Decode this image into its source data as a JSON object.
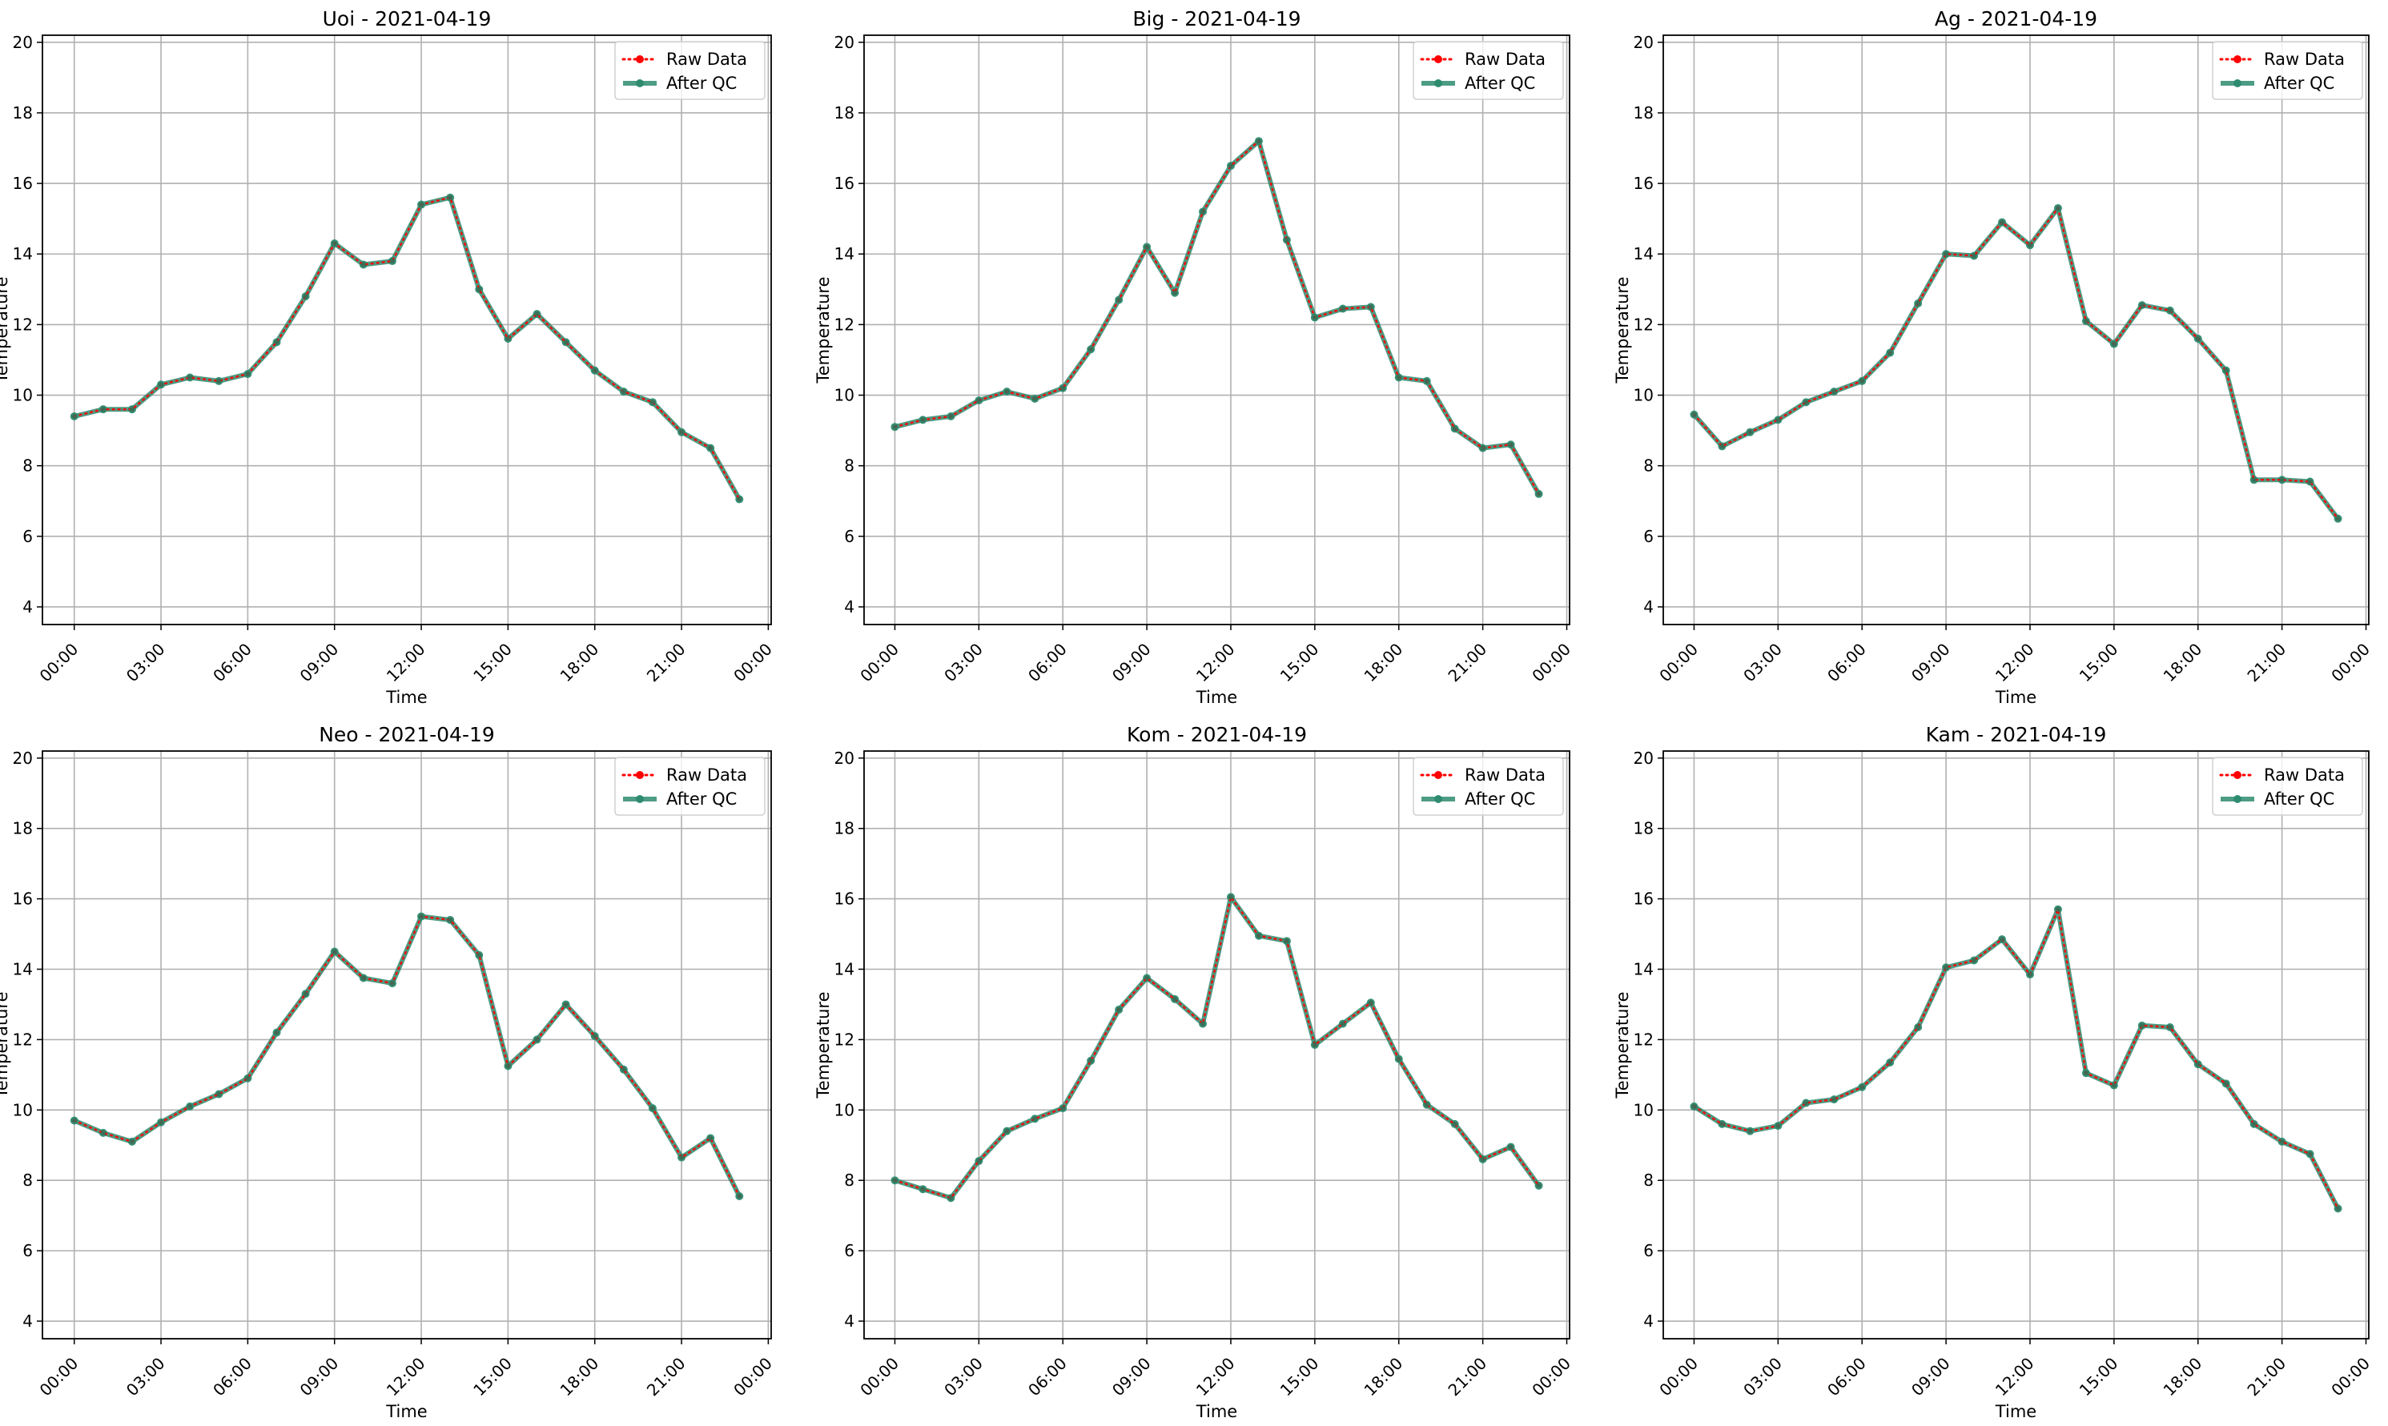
{
  "figure": {
    "x_ticks": [
      "00:00",
      "03:00",
      "06:00",
      "09:00",
      "12:00",
      "15:00",
      "18:00",
      "21:00",
      "00:00"
    ],
    "y_ticks": [
      "4",
      "6",
      "8",
      "10",
      "12",
      "14",
      "16",
      "18",
      "20"
    ],
    "legend": {
      "raw": "Raw Data",
      "qc": "After QC"
    },
    "colors": {
      "raw": "#ff0000",
      "qc": "#2e8b6f",
      "grid": "#b0b0b0"
    }
  },
  "chart_data": [
    {
      "type": "line",
      "title": "Uoi - 2021-04-19",
      "xlabel": "Time",
      "ylabel": "Temperature",
      "x": [
        "00:00",
        "01:00",
        "02:00",
        "03:00",
        "04:00",
        "05:00",
        "06:00",
        "07:00",
        "08:00",
        "09:00",
        "10:00",
        "11:00",
        "12:00",
        "13:00",
        "14:00",
        "15:00",
        "16:00",
        "17:00",
        "18:00",
        "19:00",
        "20:00",
        "21:00",
        "22:00",
        "23:00"
      ],
      "xlim": [
        "-01:06",
        "24:06"
      ],
      "ylim": [
        3.5,
        20.2
      ],
      "grid": true,
      "legend_position": "top-right",
      "series": [
        {
          "name": "Raw Data",
          "values": [
            9.4,
            9.6,
            9.6,
            10.3,
            10.5,
            10.4,
            10.6,
            11.5,
            12.8,
            14.3,
            13.7,
            13.8,
            15.4,
            15.6,
            13.0,
            11.6,
            12.3,
            11.5,
            10.7,
            10.1,
            9.8,
            8.95,
            8.5,
            7.05
          ]
        },
        {
          "name": "After QC",
          "values": [
            9.4,
            9.6,
            9.6,
            10.3,
            10.5,
            10.4,
            10.6,
            11.5,
            12.8,
            14.3,
            13.7,
            13.8,
            15.4,
            15.6,
            13.0,
            11.6,
            12.3,
            11.5,
            10.7,
            10.1,
            9.8,
            8.95,
            8.5,
            7.05
          ]
        }
      ]
    },
    {
      "type": "line",
      "title": "Big - 2021-04-19",
      "xlabel": "Time",
      "ylabel": "Temperature",
      "x": [
        "00:00",
        "01:00",
        "02:00",
        "03:00",
        "04:00",
        "05:00",
        "06:00",
        "07:00",
        "08:00",
        "09:00",
        "10:00",
        "11:00",
        "12:00",
        "13:00",
        "14:00",
        "15:00",
        "16:00",
        "17:00",
        "18:00",
        "19:00",
        "20:00",
        "21:00",
        "22:00",
        "23:00"
      ],
      "xlim": [
        "-01:06",
        "24:06"
      ],
      "ylim": [
        3.5,
        20.2
      ],
      "grid": true,
      "legend_position": "top-right",
      "series": [
        {
          "name": "Raw Data",
          "values": [
            9.1,
            9.3,
            9.4,
            9.85,
            10.1,
            9.9,
            10.2,
            11.3,
            12.7,
            14.2,
            12.9,
            15.2,
            16.5,
            17.2,
            14.4,
            12.2,
            12.45,
            12.5,
            10.5,
            10.4,
            9.05,
            8.5,
            8.6,
            7.2
          ]
        },
        {
          "name": "After QC",
          "values": [
            9.1,
            9.3,
            9.4,
            9.85,
            10.1,
            9.9,
            10.2,
            11.3,
            12.7,
            14.2,
            12.9,
            15.2,
            16.5,
            17.2,
            14.4,
            12.2,
            12.45,
            12.5,
            10.5,
            10.4,
            9.05,
            8.5,
            8.6,
            7.2
          ]
        }
      ]
    },
    {
      "type": "line",
      "title": "Ag - 2021-04-19",
      "xlabel": "Time",
      "ylabel": "Temperature",
      "x": [
        "00:00",
        "01:00",
        "02:00",
        "03:00",
        "04:00",
        "05:00",
        "06:00",
        "07:00",
        "08:00",
        "09:00",
        "10:00",
        "11:00",
        "12:00",
        "13:00",
        "14:00",
        "15:00",
        "16:00",
        "17:00",
        "18:00",
        "19:00",
        "20:00",
        "21:00",
        "22:00",
        "23:00"
      ],
      "xlim": [
        "-01:06",
        "24:06"
      ],
      "ylim": [
        3.5,
        20.2
      ],
      "grid": true,
      "legend_position": "top-right",
      "series": [
        {
          "name": "Raw Data",
          "values": [
            9.45,
            8.55,
            8.95,
            9.3,
            9.8,
            10.1,
            10.4,
            11.2,
            12.6,
            14.0,
            13.95,
            14.9,
            14.25,
            15.3,
            12.1,
            11.45,
            12.55,
            12.4,
            11.6,
            10.7,
            7.6,
            7.6,
            7.55,
            6.5
          ]
        },
        {
          "name": "After QC",
          "values": [
            9.45,
            8.55,
            8.95,
            9.3,
            9.8,
            10.1,
            10.4,
            11.2,
            12.6,
            14.0,
            13.95,
            14.9,
            14.25,
            15.3,
            12.1,
            11.45,
            12.55,
            12.4,
            11.6,
            10.7,
            7.6,
            7.6,
            7.55,
            6.5
          ]
        }
      ]
    },
    {
      "type": "line",
      "title": "Neo - 2021-04-19",
      "xlabel": "Time",
      "ylabel": "Temperature",
      "x": [
        "00:00",
        "01:00",
        "02:00",
        "03:00",
        "04:00",
        "05:00",
        "06:00",
        "07:00",
        "08:00",
        "09:00",
        "10:00",
        "11:00",
        "12:00",
        "13:00",
        "14:00",
        "15:00",
        "16:00",
        "17:00",
        "18:00",
        "19:00",
        "20:00",
        "21:00",
        "22:00",
        "23:00"
      ],
      "xlim": [
        "-01:06",
        "24:06"
      ],
      "ylim": [
        3.5,
        20.2
      ],
      "grid": true,
      "legend_position": "top-right",
      "series": [
        {
          "name": "Raw Data",
          "values": [
            9.7,
            9.35,
            9.1,
            9.65,
            10.1,
            10.45,
            10.9,
            12.2,
            13.3,
            14.5,
            13.75,
            13.6,
            15.5,
            15.4,
            14.4,
            11.25,
            12.0,
            13.0,
            12.1,
            11.15,
            10.05,
            8.65,
            9.2,
            7.55
          ]
        },
        {
          "name": "After QC",
          "values": [
            9.7,
            9.35,
            9.1,
            9.65,
            10.1,
            10.45,
            10.9,
            12.2,
            13.3,
            14.5,
            13.75,
            13.6,
            15.5,
            15.4,
            14.4,
            11.25,
            12.0,
            13.0,
            12.1,
            11.15,
            10.05,
            8.65,
            9.2,
            7.55
          ]
        }
      ]
    },
    {
      "type": "line",
      "title": "Kom - 2021-04-19",
      "xlabel": "Time",
      "ylabel": "Temperature",
      "x": [
        "00:00",
        "01:00",
        "02:00",
        "03:00",
        "04:00",
        "05:00",
        "06:00",
        "07:00",
        "08:00",
        "09:00",
        "10:00",
        "11:00",
        "12:00",
        "13:00",
        "14:00",
        "15:00",
        "16:00",
        "17:00",
        "18:00",
        "19:00",
        "20:00",
        "21:00",
        "22:00",
        "23:00"
      ],
      "xlim": [
        "-01:06",
        "24:06"
      ],
      "ylim": [
        3.5,
        20.2
      ],
      "grid": true,
      "legend_position": "top-right",
      "series": [
        {
          "name": "Raw Data",
          "values": [
            8.0,
            7.75,
            7.5,
            8.55,
            9.4,
            9.75,
            10.05,
            11.4,
            12.85,
            13.75,
            13.15,
            12.45,
            16.05,
            14.95,
            14.8,
            11.85,
            12.45,
            13.05,
            11.45,
            10.15,
            9.6,
            8.6,
            8.95,
            7.85
          ]
        },
        {
          "name": "After QC",
          "values": [
            8.0,
            7.75,
            7.5,
            8.55,
            9.4,
            9.75,
            10.05,
            11.4,
            12.85,
            13.75,
            13.15,
            12.45,
            16.05,
            14.95,
            14.8,
            11.85,
            12.45,
            13.05,
            11.45,
            10.15,
            9.6,
            8.6,
            8.95,
            7.85
          ]
        }
      ]
    },
    {
      "type": "line",
      "title": "Kam - 2021-04-19",
      "xlabel": "Time",
      "ylabel": "Temperature",
      "x": [
        "00:00",
        "01:00",
        "02:00",
        "03:00",
        "04:00",
        "05:00",
        "06:00",
        "07:00",
        "08:00",
        "09:00",
        "10:00",
        "11:00",
        "12:00",
        "13:00",
        "14:00",
        "15:00",
        "16:00",
        "17:00",
        "18:00",
        "19:00",
        "20:00",
        "21:00",
        "22:00",
        "23:00"
      ],
      "xlim": [
        "-01:06",
        "24:06"
      ],
      "ylim": [
        3.5,
        20.2
      ],
      "grid": true,
      "legend_position": "top-right",
      "series": [
        {
          "name": "Raw Data",
          "values": [
            10.1,
            9.6,
            9.4,
            9.55,
            10.2,
            10.3,
            10.65,
            11.35,
            12.35,
            14.05,
            14.25,
            14.85,
            13.85,
            15.7,
            11.05,
            10.7,
            12.4,
            12.35,
            11.3,
            10.75,
            9.6,
            9.1,
            8.75,
            7.2
          ]
        },
        {
          "name": "After QC",
          "values": [
            10.1,
            9.6,
            9.4,
            9.55,
            10.2,
            10.3,
            10.65,
            11.35,
            12.35,
            14.05,
            14.25,
            14.85,
            13.85,
            15.7,
            11.05,
            10.7,
            12.4,
            12.35,
            11.3,
            10.75,
            9.6,
            9.1,
            8.75,
            7.2
          ]
        }
      ]
    }
  ]
}
